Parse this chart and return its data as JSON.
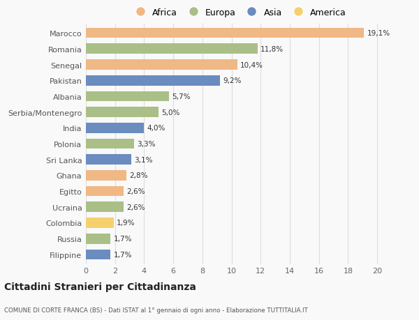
{
  "categories": [
    "Marocco",
    "Romania",
    "Senegal",
    "Pakistan",
    "Albania",
    "Serbia/Montenegro",
    "India",
    "Polonia",
    "Sri Lanka",
    "Ghana",
    "Egitto",
    "Ucraina",
    "Colombia",
    "Russia",
    "Filippine"
  ],
  "values": [
    19.1,
    11.8,
    10.4,
    9.2,
    5.7,
    5.0,
    4.0,
    3.3,
    3.1,
    2.8,
    2.6,
    2.6,
    1.9,
    1.7,
    1.7
  ],
  "continents": [
    "Africa",
    "Europa",
    "Africa",
    "Asia",
    "Europa",
    "Europa",
    "Asia",
    "Europa",
    "Asia",
    "Africa",
    "Africa",
    "Europa",
    "America",
    "Europa",
    "Asia"
  ],
  "labels": [
    "19,1%",
    "11,8%",
    "10,4%",
    "9,2%",
    "5,7%",
    "5,0%",
    "4,0%",
    "3,3%",
    "3,1%",
    "2,8%",
    "2,6%",
    "2,6%",
    "1,9%",
    "1,7%",
    "1,7%"
  ],
  "colors": {
    "Africa": "#F0B884",
    "Europa": "#AABF87",
    "Asia": "#6B8CBF",
    "America": "#F5D06E"
  },
  "legend_order": [
    "Africa",
    "Europa",
    "Asia",
    "America"
  ],
  "title": "Cittadini Stranieri per Cittadinanza",
  "subtitle": "COMUNE DI CORTE FRANCA (BS) - Dati ISTAT al 1° gennaio di ogni anno - Elaborazione TUTTITALIA.IT",
  "xlim": [
    0,
    21
  ],
  "xticks": [
    0,
    2,
    4,
    6,
    8,
    10,
    12,
    14,
    16,
    18,
    20
  ],
  "background_color": "#f9f9f9",
  "grid_color": "#dddddd",
  "bar_height": 0.65
}
